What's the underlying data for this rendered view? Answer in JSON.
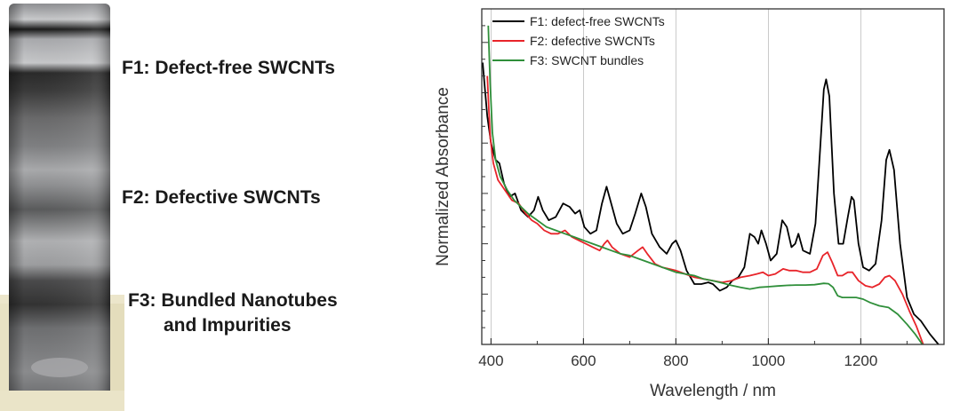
{
  "labels": {
    "f1": "F1: Defect-free SWCNTs",
    "f2": "F2: Defective SWCNTs",
    "f3_line1": "F3: Bundled Nanotubes",
    "f3_line2": "and Impurities"
  },
  "chart_data": {
    "type": "line",
    "title": "",
    "xlabel": "Wavelength / nm",
    "ylabel": "Normalized Absorbance",
    "xlim": [
      380,
      1380
    ],
    "ylim": [
      0,
      1
    ],
    "xticks": [
      400,
      600,
      800,
      1000,
      1200
    ],
    "grid": "vertical",
    "legend": "top-left",
    "series": [
      {
        "name": "F1: defect-free SWCNTs",
        "color": "#000000",
        "points": [
          [
            382,
            0.84
          ],
          [
            392,
            0.68
          ],
          [
            400,
            0.6
          ],
          [
            410,
            0.55
          ],
          [
            418,
            0.54
          ],
          [
            428,
            0.48
          ],
          [
            440,
            0.44
          ],
          [
            452,
            0.45
          ],
          [
            465,
            0.4
          ],
          [
            480,
            0.38
          ],
          [
            493,
            0.4
          ],
          [
            502,
            0.44
          ],
          [
            512,
            0.4
          ],
          [
            525,
            0.37
          ],
          [
            540,
            0.38
          ],
          [
            556,
            0.42
          ],
          [
            570,
            0.41
          ],
          [
            582,
            0.39
          ],
          [
            592,
            0.4
          ],
          [
            602,
            0.35
          ],
          [
            615,
            0.33
          ],
          [
            628,
            0.34
          ],
          [
            640,
            0.42
          ],
          [
            650,
            0.47
          ],
          [
            660,
            0.42
          ],
          [
            672,
            0.36
          ],
          [
            685,
            0.33
          ],
          [
            700,
            0.34
          ],
          [
            712,
            0.39
          ],
          [
            725,
            0.45
          ],
          [
            735,
            0.41
          ],
          [
            748,
            0.33
          ],
          [
            765,
            0.29
          ],
          [
            780,
            0.27
          ],
          [
            792,
            0.3
          ],
          [
            800,
            0.31
          ],
          [
            810,
            0.28
          ],
          [
            823,
            0.22
          ],
          [
            840,
            0.18
          ],
          [
            855,
            0.18
          ],
          [
            870,
            0.185
          ],
          [
            880,
            0.18
          ],
          [
            895,
            0.16
          ],
          [
            910,
            0.17
          ],
          [
            922,
            0.19
          ],
          [
            935,
            0.2
          ],
          [
            948,
            0.23
          ],
          [
            960,
            0.33
          ],
          [
            970,
            0.32
          ],
          [
            978,
            0.3
          ],
          [
            985,
            0.34
          ],
          [
            995,
            0.3
          ],
          [
            1005,
            0.25
          ],
          [
            1018,
            0.27
          ],
          [
            1030,
            0.37
          ],
          [
            1040,
            0.35
          ],
          [
            1050,
            0.29
          ],
          [
            1058,
            0.3
          ],
          [
            1065,
            0.33
          ],
          [
            1075,
            0.28
          ],
          [
            1090,
            0.27
          ],
          [
            1102,
            0.36
          ],
          [
            1112,
            0.58
          ],
          [
            1120,
            0.76
          ],
          [
            1125,
            0.79
          ],
          [
            1132,
            0.74
          ],
          [
            1142,
            0.45
          ],
          [
            1152,
            0.3
          ],
          [
            1162,
            0.3
          ],
          [
            1172,
            0.38
          ],
          [
            1180,
            0.44
          ],
          [
            1185,
            0.43
          ],
          [
            1195,
            0.3
          ],
          [
            1205,
            0.23
          ],
          [
            1218,
            0.22
          ],
          [
            1232,
            0.24
          ],
          [
            1245,
            0.37
          ],
          [
            1255,
            0.55
          ],
          [
            1262,
            0.58
          ],
          [
            1272,
            0.52
          ],
          [
            1285,
            0.3
          ],
          [
            1300,
            0.14
          ],
          [
            1315,
            0.09
          ],
          [
            1330,
            0.07
          ],
          [
            1350,
            0.03
          ],
          [
            1368,
            0.0
          ]
        ]
      },
      {
        "name": "F2: defective SWCNTs",
        "color": "#e8242a",
        "points": [
          [
            392,
            0.8
          ],
          [
            398,
            0.62
          ],
          [
            405,
            0.54
          ],
          [
            415,
            0.49
          ],
          [
            430,
            0.46
          ],
          [
            445,
            0.43
          ],
          [
            460,
            0.42
          ],
          [
            475,
            0.39
          ],
          [
            488,
            0.37
          ],
          [
            500,
            0.36
          ],
          [
            515,
            0.34
          ],
          [
            530,
            0.33
          ],
          [
            545,
            0.33
          ],
          [
            560,
            0.34
          ],
          [
            575,
            0.32
          ],
          [
            590,
            0.31
          ],
          [
            605,
            0.3
          ],
          [
            620,
            0.29
          ],
          [
            635,
            0.28
          ],
          [
            645,
            0.3
          ],
          [
            652,
            0.31
          ],
          [
            662,
            0.29
          ],
          [
            680,
            0.27
          ],
          [
            700,
            0.26
          ],
          [
            718,
            0.28
          ],
          [
            728,
            0.29
          ],
          [
            738,
            0.27
          ],
          [
            755,
            0.24
          ],
          [
            770,
            0.23
          ],
          [
            785,
            0.225
          ],
          [
            800,
            0.22
          ],
          [
            820,
            0.21
          ],
          [
            840,
            0.2
          ],
          [
            860,
            0.195
          ],
          [
            880,
            0.19
          ],
          [
            900,
            0.185
          ],
          [
            920,
            0.19
          ],
          [
            940,
            0.2
          ],
          [
            960,
            0.205
          ],
          [
            975,
            0.21
          ],
          [
            988,
            0.215
          ],
          [
            1000,
            0.205
          ],
          [
            1015,
            0.21
          ],
          [
            1032,
            0.225
          ],
          [
            1045,
            0.22
          ],
          [
            1060,
            0.22
          ],
          [
            1075,
            0.215
          ],
          [
            1090,
            0.215
          ],
          [
            1105,
            0.225
          ],
          [
            1118,
            0.265
          ],
          [
            1128,
            0.275
          ],
          [
            1138,
            0.245
          ],
          [
            1150,
            0.205
          ],
          [
            1160,
            0.205
          ],
          [
            1172,
            0.215
          ],
          [
            1182,
            0.215
          ],
          [
            1195,
            0.19
          ],
          [
            1210,
            0.175
          ],
          [
            1225,
            0.17
          ],
          [
            1240,
            0.18
          ],
          [
            1252,
            0.2
          ],
          [
            1262,
            0.205
          ],
          [
            1274,
            0.19
          ],
          [
            1290,
            0.15
          ],
          [
            1305,
            0.1
          ],
          [
            1320,
            0.055
          ],
          [
            1335,
            0.0
          ]
        ]
      },
      {
        "name": "F3: SWCNT bundles",
        "color": "#2f8f3a",
        "points": [
          [
            394,
            0.95
          ],
          [
            398,
            0.78
          ],
          [
            403,
            0.63
          ],
          [
            410,
            0.55
          ],
          [
            420,
            0.5
          ],
          [
            435,
            0.46
          ],
          [
            450,
            0.43
          ],
          [
            465,
            0.41
          ],
          [
            480,
            0.39
          ],
          [
            500,
            0.37
          ],
          [
            520,
            0.35
          ],
          [
            540,
            0.34
          ],
          [
            560,
            0.33
          ],
          [
            580,
            0.32
          ],
          [
            600,
            0.31
          ],
          [
            620,
            0.3
          ],
          [
            640,
            0.29
          ],
          [
            660,
            0.28
          ],
          [
            680,
            0.27
          ],
          [
            700,
            0.265
          ],
          [
            720,
            0.255
          ],
          [
            740,
            0.245
          ],
          [
            760,
            0.235
          ],
          [
            780,
            0.225
          ],
          [
            800,
            0.215
          ],
          [
            820,
            0.21
          ],
          [
            840,
            0.205
          ],
          [
            860,
            0.195
          ],
          [
            880,
            0.19
          ],
          [
            900,
            0.183
          ],
          [
            920,
            0.176
          ],
          [
            940,
            0.17
          ],
          [
            960,
            0.165
          ],
          [
            980,
            0.17
          ],
          [
            1000,
            0.172
          ],
          [
            1020,
            0.174
          ],
          [
            1040,
            0.176
          ],
          [
            1060,
            0.177
          ],
          [
            1080,
            0.177
          ],
          [
            1100,
            0.178
          ],
          [
            1120,
            0.182
          ],
          [
            1130,
            0.181
          ],
          [
            1140,
            0.17
          ],
          [
            1150,
            0.145
          ],
          [
            1160,
            0.14
          ],
          [
            1175,
            0.14
          ],
          [
            1190,
            0.14
          ],
          [
            1205,
            0.135
          ],
          [
            1220,
            0.125
          ],
          [
            1240,
            0.115
          ],
          [
            1260,
            0.11
          ],
          [
            1280,
            0.09
          ],
          [
            1300,
            0.06
          ],
          [
            1318,
            0.03
          ],
          [
            1333,
            0.0
          ]
        ]
      }
    ]
  }
}
